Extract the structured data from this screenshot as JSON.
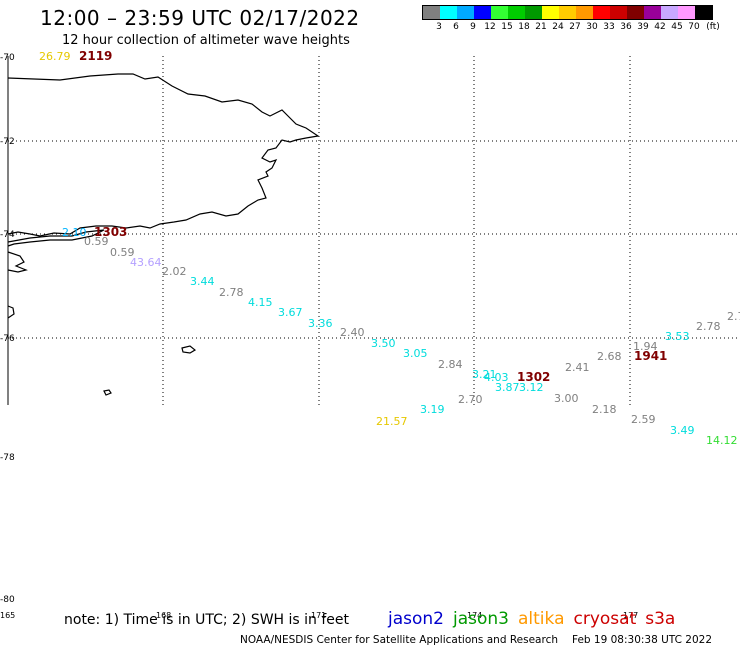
{
  "title": "12:00 – 23:59 UTC 02/17/2022",
  "subtitle": "12 hour collection of altimeter wave heights",
  "legend": {
    "colors": [
      "#808080",
      "#00ffff",
      "#00aaff",
      "#0000ff",
      "#33ff33",
      "#00cc00",
      "#009900",
      "#ffff00",
      "#ffcc00",
      "#ff9900",
      "#ff0000",
      "#cc0000",
      "#800000",
      "#990099",
      "#c8a8ff",
      "#ff99ff",
      "#000000"
    ],
    "labels": [
      "3",
      "6",
      "9",
      "12",
      "15",
      "18",
      "21",
      "24",
      "27",
      "30",
      "33",
      "36",
      "39",
      "42",
      "45",
      "70"
    ],
    "unit": "(ft)"
  },
  "axes": {
    "lat_labels": [
      "-70",
      "-72",
      "-74",
      "-76",
      "-78",
      "-80"
    ],
    "lon_labels": [
      "165",
      "168",
      "171",
      "174",
      "177"
    ]
  },
  "observations": [
    {
      "v": "26.79",
      "c": "#e6c800"
    },
    {
      "v": "2119",
      "c": "#800000",
      "bold": true
    },
    {
      "v": "2.10",
      "c": "#00b4ff"
    },
    {
      "v": "1303",
      "c": "#800000",
      "bold": true
    },
    {
      "v": "0.59",
      "c": "#808080"
    },
    {
      "v": "0.59",
      "c": "#808080"
    },
    {
      "v": "43.64",
      "c": "#b4a0ff"
    },
    {
      "v": "2.02",
      "c": "#808080"
    },
    {
      "v": "3.44",
      "c": "#00dcdc"
    },
    {
      "v": "2.78",
      "c": "#808080"
    },
    {
      "v": "4.15",
      "c": "#00dcdc"
    },
    {
      "v": "3.67",
      "c": "#00dcdc"
    },
    {
      "v": "3.36",
      "c": "#00dcdc"
    },
    {
      "v": "2.40",
      "c": "#808080"
    },
    {
      "v": "3.50",
      "c": "#00dcdc"
    },
    {
      "v": "3.05",
      "c": "#00dcdc"
    },
    {
      "v": "2.84",
      "c": "#808080"
    },
    {
      "v": "3.21",
      "c": "#00dcdc"
    },
    {
      "v": "4.03",
      "c": "#00dcdc"
    },
    {
      "v": "1302",
      "c": "#800000",
      "bold": true
    },
    {
      "v": "3.87",
      "c": "#00dcdc"
    },
    {
      "v": "3.12",
      "c": "#00dcdc"
    },
    {
      "v": "2.41",
      "c": "#808080"
    },
    {
      "v": "2.70",
      "c": "#808080"
    },
    {
      "v": "3.00",
      "c": "#808080"
    },
    {
      "v": "3.19",
      "c": "#00dcdc"
    },
    {
      "v": "21.57",
      "c": "#e6c800"
    },
    {
      "v": "2.68",
      "c": "#808080"
    },
    {
      "v": "1.94",
      "c": "#808080"
    },
    {
      "v": "1941",
      "c": "#800000",
      "bold": true
    },
    {
      "v": "3.53",
      "c": "#00dcdc"
    },
    {
      "v": "2.78",
      "c": "#808080"
    },
    {
      "v": "2.7",
      "c": "#808080"
    },
    {
      "v": "2.18",
      "c": "#808080"
    },
    {
      "v": "2.59",
      "c": "#808080"
    },
    {
      "v": "3.49",
      "c": "#00dcdc"
    },
    {
      "v": "14.12",
      "c": "#33dd33"
    }
  ],
  "note": "note: 1) Time is in UTC; 2) SWH is in feet",
  "satellites": [
    {
      "name": "jason2",
      "color": "#0000cc"
    },
    {
      "name": "jason3",
      "color": "#009900"
    },
    {
      "name": "altika",
      "color": "#ff9900"
    },
    {
      "name": "cryosat",
      "color": "#cc0000"
    },
    {
      "name": "s3a",
      "color": "#cc0000"
    }
  ],
  "footer": {
    "center": "NOAA/NESDIS Center for Satellite Applications and Research",
    "timestamp": "Feb 19 08:30:38 UTC 2022"
  }
}
